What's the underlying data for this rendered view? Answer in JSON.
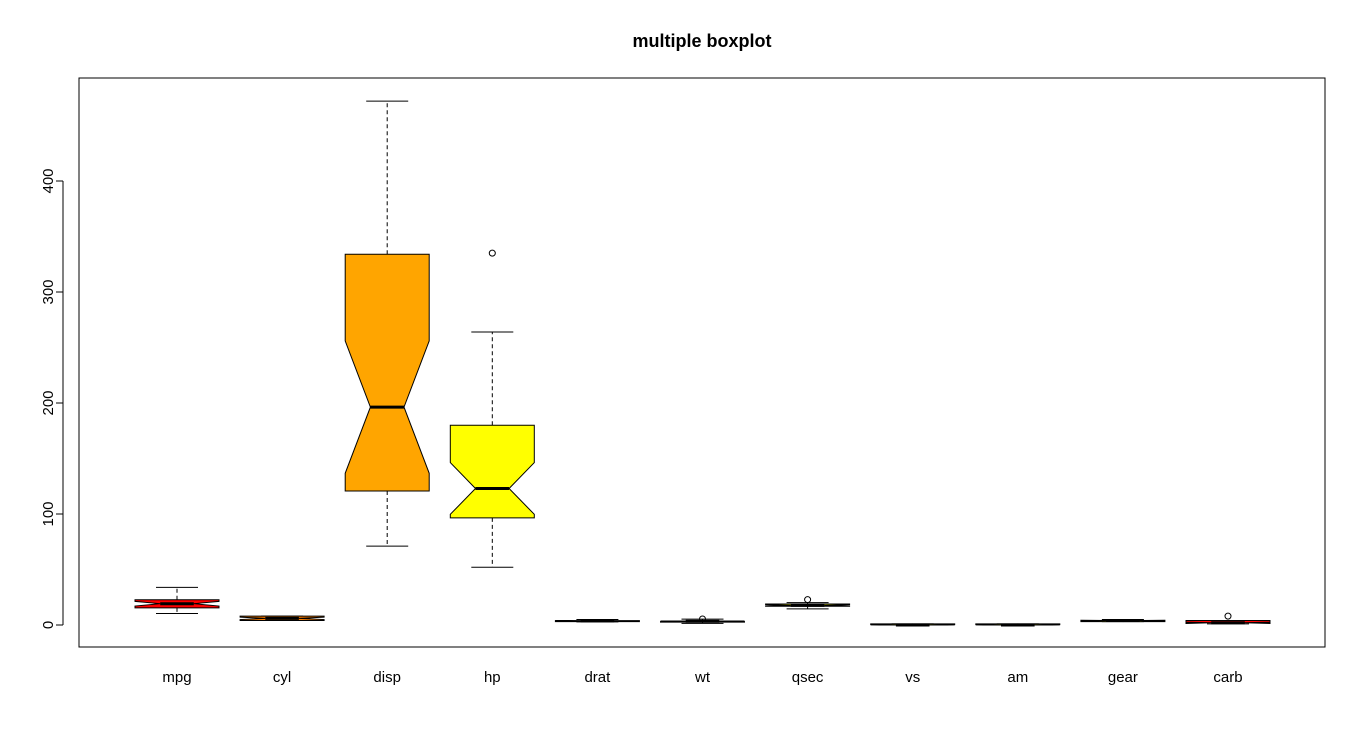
{
  "chart_data": {
    "type": "boxplot",
    "title": "multiple boxplot",
    "xlabel": "",
    "ylabel": "",
    "ylim": [
      -20,
      490
    ],
    "yticks": [
      0,
      100,
      200,
      300,
      400
    ],
    "grid": false,
    "notched": true,
    "boxes": [
      {
        "label": "mpg",
        "color": "#ff0000",
        "min": 10.4,
        "q1": 15.4,
        "median": 19.2,
        "q3": 22.8,
        "max": 33.9,
        "notch_lo": 17.1,
        "notch_hi": 21.3,
        "outliers": []
      },
      {
        "label": "cyl",
        "color": "#ff7f00",
        "min": 4,
        "q1": 4,
        "median": 6,
        "q3": 8,
        "max": 8,
        "notch_lo": 4.9,
        "notch_hi": 7.1,
        "outliers": []
      },
      {
        "label": "disp",
        "color": "#ffa500",
        "min": 71.1,
        "q1": 120.7,
        "median": 196.3,
        "q3": 334,
        "max": 472,
        "notch_lo": 136.7,
        "notch_hi": 255.9,
        "outliers": []
      },
      {
        "label": "hp",
        "color": "#ffff00",
        "min": 52,
        "q1": 96.5,
        "median": 123,
        "q3": 180,
        "max": 264,
        "notch_lo": 99.7,
        "notch_hi": 146.3,
        "outliers": [
          335
        ]
      },
      {
        "label": "drat",
        "color": "#ffff00",
        "min": 2.76,
        "q1": 3.08,
        "median": 3.7,
        "q3": 3.92,
        "max": 4.93,
        "notch_lo": 3.46,
        "notch_hi": 3.93,
        "outliers": []
      },
      {
        "label": "wt",
        "color": "#ffff00",
        "min": 1.51,
        "q1": 2.58,
        "median": 3.33,
        "q3": 3.61,
        "max": 5.25,
        "notch_lo": 3.04,
        "notch_hi": 3.61,
        "outliers": [
          5.42
        ]
      },
      {
        "label": "qsec",
        "color": "#ffff00",
        "min": 14.5,
        "q1": 16.9,
        "median": 17.7,
        "q3": 18.9,
        "max": 20.2,
        "notch_lo": 17.1,
        "notch_hi": 18.3,
        "outliers": [
          22.9
        ]
      },
      {
        "label": "vs",
        "color": "#ffff00",
        "min": 0,
        "q1": 0,
        "median": 0,
        "q3": 1,
        "max": 1,
        "notch_lo": 0,
        "notch_hi": 0.3,
        "outliers": []
      },
      {
        "label": "am",
        "color": "#ffff00",
        "min": 0,
        "q1": 0,
        "median": 0,
        "q3": 1,
        "max": 1,
        "notch_lo": 0,
        "notch_hi": 0.3,
        "outliers": []
      },
      {
        "label": "gear",
        "color": "#ffff00",
        "min": 3,
        "q1": 3,
        "median": 4,
        "q3": 4,
        "max": 5,
        "notch_lo": 3.7,
        "notch_hi": 4.3,
        "outliers": []
      },
      {
        "label": "carb",
        "color": "#ff0000",
        "min": 1,
        "q1": 2,
        "median": 2,
        "q3": 4,
        "max": 4,
        "notch_lo": 1.4,
        "notch_hi": 2.6,
        "outliers": [
          8
        ]
      }
    ]
  }
}
